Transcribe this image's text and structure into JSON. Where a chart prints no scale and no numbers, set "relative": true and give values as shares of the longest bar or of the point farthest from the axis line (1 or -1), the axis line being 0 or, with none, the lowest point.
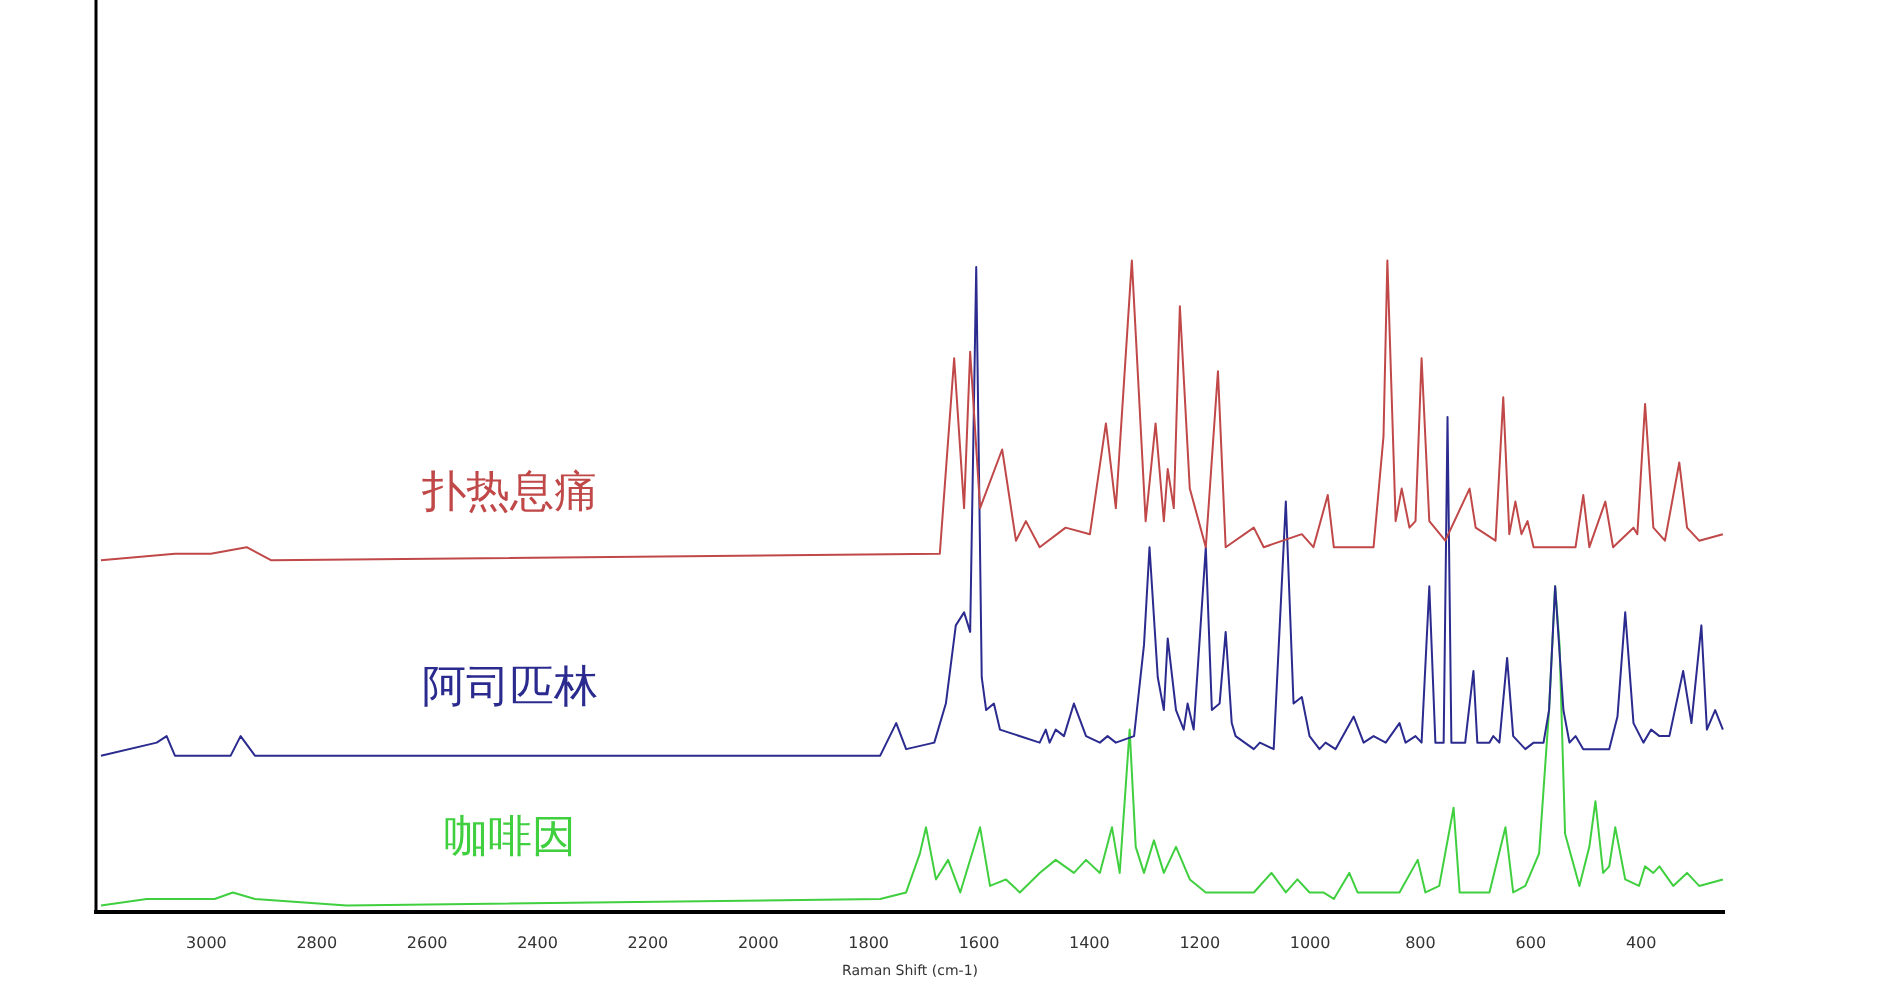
{
  "chart_data": {
    "type": "line",
    "relative": true,
    "xlabel": "Raman Shift (cm-1)",
    "xlim": [
      3200,
      250
    ],
    "xticks": [
      3000,
      2800,
      2600,
      2400,
      2200,
      2000,
      1800,
      1600,
      1400,
      1200,
      1000,
      800,
      600,
      400
    ],
    "grid": false,
    "legend": false,
    "marker": "none",
    "line_style": "solid",
    "series": [
      {
        "name": "扑热息痛",
        "color": "#c04848",
        "x": [
          3191,
          3057,
          2992,
          2927,
          2883,
          1671,
          1645,
          1627,
          1616,
          1598,
          1558,
          1533,
          1515,
          1490,
          1443,
          1399,
          1370,
          1352,
          1323,
          1298,
          1280,
          1265,
          1258,
          1247,
          1236,
          1218,
          1189,
          1167,
          1153,
          1102,
          1084,
          1015,
          994,
          968,
          957,
          885,
          867,
          860,
          845,
          834,
          820,
          809,
          798,
          784,
          755,
          711,
          700,
          682,
          664,
          650,
          639,
          628,
          617,
          606,
          595,
          548,
          519,
          505,
          494,
          465,
          451,
          414,
          407,
          393,
          378,
          357,
          331,
          317,
          295,
          252
        ],
        "values": [
          0.54,
          0.55,
          0.55,
          0.56,
          0.54,
          0.55,
          0.85,
          0.62,
          0.86,
          0.62,
          0.71,
          0.57,
          0.6,
          0.56,
          0.59,
          0.58,
          0.75,
          0.62,
          1,
          0.6,
          0.75,
          0.6,
          0.68,
          0.62,
          0.93,
          0.65,
          0.56,
          0.83,
          0.56,
          0.59,
          0.56,
          0.58,
          0.56,
          0.64,
          0.56,
          0.56,
          0.73,
          1,
          0.6,
          0.65,
          0.59,
          0.6,
          0.85,
          0.6,
          0.57,
          0.65,
          0.59,
          0.58,
          0.57,
          0.79,
          0.58,
          0.63,
          0.58,
          0.6,
          0.56,
          0.56,
          0.56,
          0.64,
          0.56,
          0.63,
          0.56,
          0.59,
          0.58,
          0.78,
          0.59,
          0.57,
          0.69,
          0.59,
          0.57,
          0.58
        ]
      },
      {
        "name": "阿司匹林",
        "color": "#2b2b8f",
        "x": [
          3191,
          3090,
          3072,
          3057,
          2956,
          2938,
          2912,
          1779,
          1750,
          1732,
          1681,
          1660,
          1642,
          1627,
          1616,
          1605,
          1595,
          1587,
          1573,
          1562,
          1490,
          1479,
          1472,
          1461,
          1446,
          1428,
          1406,
          1381,
          1367,
          1352,
          1319,
          1301,
          1291,
          1276,
          1265,
          1258,
          1243,
          1229,
          1222,
          1211,
          1189,
          1178,
          1164,
          1153,
          1142,
          1135,
          1102,
          1091,
          1066,
          1044,
          1030,
          1015,
          1001,
          983,
          972,
          954,
          921,
          903,
          885,
          863,
          838,
          827,
          809,
          798,
          784,
          773,
          758,
          751,
          744,
          719,
          704,
          697,
          675,
          668,
          657,
          643,
          632,
          610,
          595,
          577,
          567,
          556,
          541,
          530,
          519,
          505,
          458,
          443,
          429,
          414,
          396,
          382,
          367,
          349,
          324,
          309,
          291,
          281,
          266,
          252
        ],
        "values": [
          0.24,
          0.26,
          0.27,
          0.24,
          0.24,
          0.27,
          0.24,
          0.24,
          0.29,
          0.25,
          0.26,
          0.32,
          0.44,
          0.46,
          0.43,
          0.99,
          0.36,
          0.31,
          0.32,
          0.28,
          0.26,
          0.28,
          0.26,
          0.28,
          0.27,
          0.32,
          0.27,
          0.26,
          0.27,
          0.26,
          0.27,
          0.41,
          0.56,
          0.36,
          0.31,
          0.42,
          0.31,
          0.28,
          0.32,
          0.28,
          0.56,
          0.31,
          0.32,
          0.43,
          0.29,
          0.27,
          0.25,
          0.26,
          0.25,
          0.63,
          0.32,
          0.33,
          0.27,
          0.25,
          0.26,
          0.25,
          0.3,
          0.26,
          0.27,
          0.26,
          0.29,
          0.26,
          0.27,
          0.26,
          0.5,
          0.26,
          0.26,
          0.76,
          0.26,
          0.26,
          0.37,
          0.26,
          0.26,
          0.27,
          0.26,
          0.39,
          0.27,
          0.25,
          0.26,
          0.26,
          0.31,
          0.5,
          0.31,
          0.26,
          0.27,
          0.25,
          0.25,
          0.3,
          0.46,
          0.29,
          0.26,
          0.28,
          0.27,
          0.27,
          0.37,
          0.29,
          0.44,
          0.28,
          0.31,
          0.28
        ]
      },
      {
        "name": "咖啡因",
        "color": "#3fcf3f",
        "x": [
          3191,
          3108,
          2985,
          2952,
          2912,
          2746,
          1779,
          1732,
          1707,
          1696,
          1678,
          1656,
          1634,
          1598,
          1580,
          1551,
          1526,
          1490,
          1461,
          1428,
          1406,
          1381,
          1359,
          1345,
          1327,
          1316,
          1301,
          1283,
          1265,
          1243,
          1218,
          1189,
          1135,
          1102,
          1070,
          1044,
          1023,
          1001,
          976,
          957,
          929,
          914,
          838,
          805,
          791,
          766,
          740,
          729,
          700,
          675,
          646,
          632,
          610,
          585,
          567,
          556,
          548,
          538,
          512,
          494,
          483,
          469,
          458,
          447,
          429,
          404,
          393,
          378,
          367,
          342,
          317,
          295,
          252
        ],
        "values": [
          0.01,
          0.02,
          0.02,
          0.03,
          0.02,
          0.01,
          0.02,
          0.03,
          0.09,
          0.13,
          0.05,
          0.08,
          0.03,
          0.13,
          0.04,
          0.05,
          0.03,
          0.06,
          0.08,
          0.06,
          0.08,
          0.06,
          0.13,
          0.06,
          0.28,
          0.1,
          0.06,
          0.11,
          0.06,
          0.1,
          0.05,
          0.03,
          0.03,
          0.03,
          0.06,
          0.03,
          0.05,
          0.03,
          0.03,
          0.02,
          0.06,
          0.03,
          0.03,
          0.08,
          0.03,
          0.04,
          0.16,
          0.03,
          0.03,
          0.03,
          0.13,
          0.03,
          0.04,
          0.09,
          0.31,
          0.5,
          0.41,
          0.12,
          0.04,
          0.1,
          0.17,
          0.06,
          0.07,
          0.13,
          0.05,
          0.04,
          0.07,
          0.06,
          0.07,
          0.04,
          0.06,
          0.04,
          0.05
        ]
      }
    ]
  }
}
